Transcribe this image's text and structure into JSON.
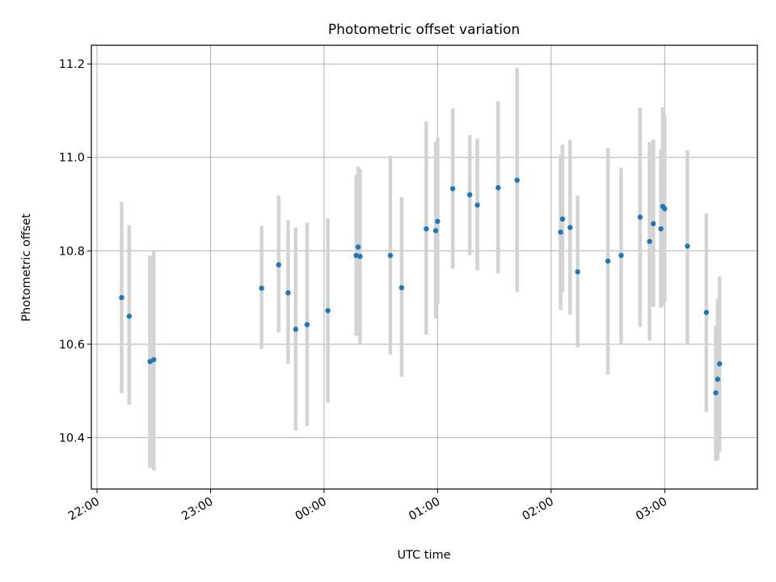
{
  "chart_data": {
    "type": "scatter",
    "title": "Photometric offset variation",
    "xlabel": "UTC time",
    "ylabel": "Photometric offset",
    "x_axis_kind": "time",
    "xlim": [
      "21:57",
      "03:49"
    ],
    "ylim": [
      10.29,
      11.24
    ],
    "xticks": [
      "22:00",
      "23:00",
      "00:00",
      "01:00",
      "02:00",
      "03:00"
    ],
    "yticks": [
      10.4,
      10.6,
      10.8,
      11.0,
      11.2
    ],
    "ytick_labels": [
      "10.4",
      "10.6",
      "10.8",
      "11.0",
      "11.2"
    ],
    "grid": true,
    "colors": {
      "points": "#1f77b4",
      "errorbars": "#d3d3d3",
      "grid": "#b0b0b0"
    },
    "series": [
      {
        "points": [
          {
            "t": "22:13",
            "y": 10.7,
            "ylo": 10.495,
            "yhi": 10.905
          },
          {
            "t": "22:17",
            "y": 10.66,
            "ylo": 10.47,
            "yhi": 10.855
          },
          {
            "t": "22:28",
            "y": 10.563,
            "ylo": 10.335,
            "yhi": 10.79
          },
          {
            "t": "22:30",
            "y": 10.567,
            "ylo": 10.33,
            "yhi": 10.8
          },
          {
            "t": "23:27",
            "y": 10.72,
            "ylo": 10.59,
            "yhi": 10.853
          },
          {
            "t": "23:36",
            "y": 10.77,
            "ylo": 10.625,
            "yhi": 10.918
          },
          {
            "t": "23:41",
            "y": 10.71,
            "ylo": 10.558,
            "yhi": 10.865
          },
          {
            "t": "23:45",
            "y": 10.632,
            "ylo": 10.415,
            "yhi": 10.85
          },
          {
            "t": "23:51",
            "y": 10.642,
            "ylo": 10.425,
            "yhi": 10.86
          },
          {
            "t": "00:02",
            "y": 10.672,
            "ylo": 10.475,
            "yhi": 10.87
          },
          {
            "t": "00:17",
            "y": 10.79,
            "ylo": 10.618,
            "yhi": 10.962
          },
          {
            "t": "00:18",
            "y": 10.808,
            "ylo": 10.635,
            "yhi": 10.98
          },
          {
            "t": "00:19",
            "y": 10.788,
            "ylo": 10.6,
            "yhi": 10.975
          },
          {
            "t": "00:35",
            "y": 10.79,
            "ylo": 10.578,
            "yhi": 11.003
          },
          {
            "t": "00:41",
            "y": 10.721,
            "ylo": 10.53,
            "yhi": 10.915
          },
          {
            "t": "00:54",
            "y": 10.847,
            "ylo": 10.62,
            "yhi": 11.077
          },
          {
            "t": "00:59",
            "y": 10.843,
            "ylo": 10.655,
            "yhi": 11.034
          },
          {
            "t": "01:00",
            "y": 10.863,
            "ylo": 10.685,
            "yhi": 11.042
          },
          {
            "t": "01:08",
            "y": 10.933,
            "ylo": 10.762,
            "yhi": 11.105
          },
          {
            "t": "01:17",
            "y": 10.92,
            "ylo": 10.79,
            "yhi": 11.048
          },
          {
            "t": "01:21",
            "y": 10.898,
            "ylo": 10.758,
            "yhi": 11.04
          },
          {
            "t": "01:32",
            "y": 10.935,
            "ylo": 10.752,
            "yhi": 11.12
          },
          {
            "t": "01:42",
            "y": 10.951,
            "ylo": 10.712,
            "yhi": 11.192
          },
          {
            "t": "02:05",
            "y": 10.84,
            "ylo": 10.673,
            "yhi": 11.006
          },
          {
            "t": "02:06",
            "y": 10.868,
            "ylo": 10.712,
            "yhi": 11.027
          },
          {
            "t": "02:10",
            "y": 10.85,
            "ylo": 10.663,
            "yhi": 11.038
          },
          {
            "t": "02:14",
            "y": 10.755,
            "ylo": 10.593,
            "yhi": 10.918
          },
          {
            "t": "02:30",
            "y": 10.778,
            "ylo": 10.535,
            "yhi": 11.02
          },
          {
            "t": "02:37",
            "y": 10.79,
            "ylo": 10.6,
            "yhi": 10.978
          },
          {
            "t": "02:47",
            "y": 10.872,
            "ylo": 10.637,
            "yhi": 11.107
          },
          {
            "t": "02:52",
            "y": 10.82,
            "ylo": 10.608,
            "yhi": 11.033
          },
          {
            "t": "02:54",
            "y": 10.858,
            "ylo": 10.68,
            "yhi": 11.038
          },
          {
            "t": "02:58",
            "y": 10.847,
            "ylo": 10.678,
            "yhi": 11.017
          },
          {
            "t": "02:59",
            "y": 10.895,
            "ylo": 10.682,
            "yhi": 11.107
          },
          {
            "t": "03:00",
            "y": 10.89,
            "ylo": 10.69,
            "yhi": 11.09
          },
          {
            "t": "03:12",
            "y": 10.81,
            "ylo": 10.6,
            "yhi": 11.015
          },
          {
            "t": "03:22",
            "y": 10.668,
            "ylo": 10.455,
            "yhi": 10.88
          },
          {
            "t": "03:27",
            "y": 10.496,
            "ylo": 10.35,
            "yhi": 10.64
          },
          {
            "t": "03:28",
            "y": 10.525,
            "ylo": 10.352,
            "yhi": 10.697
          },
          {
            "t": "03:29",
            "y": 10.558,
            "ylo": 10.37,
            "yhi": 10.745
          }
        ]
      }
    ]
  }
}
